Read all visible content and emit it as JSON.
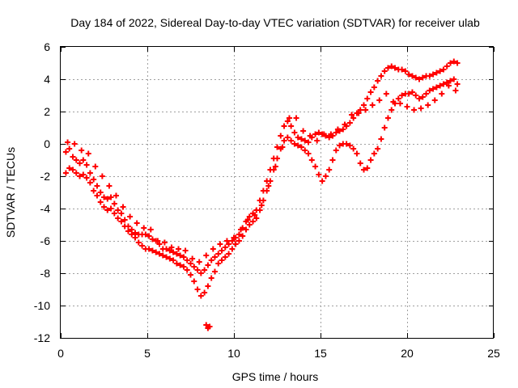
{
  "chart_data": {
    "type": "scatter",
    "title": "Day 184 of 2022, Sidereal Day-to-day VTEC variation (SDTVAR) for receiver ulab",
    "xlabel": "GPS time / hours",
    "ylabel": "SDTVAR / TECUs",
    "xlim": [
      0,
      25
    ],
    "ylim": [
      -12,
      6
    ],
    "xticks": [
      0,
      5,
      10,
      15,
      20,
      25
    ],
    "yticks": [
      -12,
      -10,
      -8,
      -6,
      -4,
      -2,
      0,
      2,
      4,
      6
    ],
    "grid": true,
    "legend": "none",
    "marker": "plus",
    "color": "#ff0000",
    "series": [
      {
        "name": "",
        "x": [
          0.3,
          0.5,
          0.7,
          0.9,
          1.1,
          1.3,
          1.5,
          1.7,
          1.9,
          2.1,
          2.3,
          2.5,
          2.7,
          2.9,
          3.1,
          3.3,
          3.5,
          3.7,
          3.9,
          4.1,
          4.3,
          4.5,
          4.7,
          4.9,
          5.1,
          5.3,
          5.5,
          5.7,
          5.9,
          6.1,
          6.3,
          6.5,
          6.7,
          6.9,
          7.1,
          7.3,
          7.5,
          7.7,
          7.9,
          8.1,
          8.3,
          8.5,
          8.7,
          8.9,
          9.1,
          9.3,
          9.5,
          9.7,
          9.9,
          10.1,
          10.3,
          10.5,
          10.7,
          10.9,
          11.1,
          11.3,
          11.5,
          11.7,
          11.9,
          12.1,
          12.3,
          12.5,
          12.7,
          12.9,
          13.1,
          13.3,
          13.5,
          13.7,
          13.9,
          14.1,
          14.3,
          14.5,
          14.7,
          14.9,
          15.1,
          15.3,
          15.5,
          15.7,
          15.9,
          16.1,
          16.3,
          16.5,
          16.7,
          16.9,
          17.1,
          17.3,
          17.5,
          17.7,
          17.9,
          18.1,
          18.3,
          18.5,
          18.7,
          18.9,
          19.1,
          19.3,
          19.5,
          19.7,
          19.9,
          20.1,
          20.3,
          20.5,
          20.7,
          20.9,
          21.1,
          21.3,
          21.5,
          21.7,
          21.9,
          22.1,
          22.3,
          22.5,
          22.7,
          22.9
        ],
        "y": [
          -0.5,
          -0.3,
          -0.8,
          -1.0,
          -1.2,
          -1.0,
          -1.3,
          -1.8,
          -2.2,
          -2.6,
          -3.0,
          -3.3,
          -3.4,
          -3.3,
          -3.7,
          -4.1,
          -4.3,
          -4.7,
          -5.1,
          -5.3,
          -5.5,
          -5.6,
          -5.6,
          -5.6,
          -5.7,
          -5.9,
          -6.0,
          -6.2,
          -6.5,
          -6.5,
          -6.6,
          -6.7,
          -6.8,
          -6.9,
          -7.0,
          -7.2,
          -7.4,
          -7.6,
          -7.8,
          -8.0,
          -7.8,
          -7.5,
          -7.2,
          -7.0,
          -6.8,
          -6.6,
          -6.4,
          -6.2,
          -6.0,
          -5.8,
          -5.6,
          -5.2,
          -4.8,
          -4.5,
          -4.3,
          -4.1,
          -3.5,
          -2.9,
          -2.3,
          -1.6,
          -0.9,
          -0.2,
          0.5,
          1.1,
          1.4,
          1.1,
          0.7,
          0.4,
          0.3,
          0.2,
          0.1,
          0.4,
          0.6,
          0.7,
          0.6,
          0.5,
          0.4,
          0.5,
          0.7,
          0.8,
          0.9,
          1.1,
          1.3,
          1.6,
          1.9,
          2.1,
          2.4,
          2.8,
          3.2,
          3.5,
          3.9,
          4.2,
          4.5,
          4.7,
          4.8,
          4.7,
          4.6,
          4.6,
          4.5,
          4.3,
          4.2,
          4.1,
          4.0,
          4.1,
          4.2,
          4.2,
          4.3,
          4.4,
          4.5,
          4.6,
          4.8,
          5.0,
          5.1,
          5.0
        ]
      },
      {
        "name": "",
        "x": [
          0.3,
          0.5,
          0.7,
          0.9,
          1.1,
          1.3,
          1.5,
          1.7,
          1.9,
          2.1,
          2.3,
          2.5,
          2.7,
          2.9,
          3.1,
          3.3,
          3.5,
          3.7,
          3.9,
          4.1,
          4.3,
          4.5,
          4.7,
          4.9,
          5.1,
          5.3,
          5.5,
          5.7,
          5.9,
          6.1,
          6.3,
          6.5,
          6.7,
          6.9,
          7.1,
          7.3,
          7.5,
          7.7,
          7.9,
          8.1,
          8.3,
          8.5,
          8.7,
          8.9,
          9.1,
          9.3,
          9.5,
          9.7,
          9.9,
          10.1,
          10.3,
          10.5,
          10.7,
          10.9,
          11.1,
          11.3,
          11.5,
          11.7,
          11.9,
          12.1,
          12.3,
          12.5,
          12.7,
          12.9,
          13.1,
          13.3,
          13.5,
          13.7,
          13.9,
          14.1,
          14.3,
          14.5,
          14.7,
          14.9,
          15.1,
          15.3,
          15.5,
          15.7,
          15.9,
          16.1,
          16.3,
          16.5,
          16.7,
          16.9,
          17.1,
          17.3,
          17.5,
          17.7,
          17.9,
          18.1,
          18.3,
          18.5,
          18.7,
          18.9,
          19.1,
          19.3,
          19.5,
          19.7,
          19.9,
          20.1,
          20.3,
          20.5,
          20.7,
          20.9,
          21.1,
          21.3,
          21.5,
          21.7,
          21.9,
          22.1,
          22.3,
          22.5,
          22.7,
          22.9
        ],
        "y": [
          -1.8,
          -1.5,
          -1.6,
          -1.8,
          -2.0,
          -1.9,
          -2.1,
          -2.4,
          -2.9,
          -3.2,
          -3.6,
          -3.9,
          -4.1,
          -4.0,
          -4.3,
          -4.6,
          -4.8,
          -5.1,
          -5.4,
          -5.6,
          -5.8,
          -6.1,
          -6.3,
          -6.5,
          -6.5,
          -6.6,
          -6.7,
          -6.8,
          -6.9,
          -7.0,
          -7.1,
          -7.2,
          -7.4,
          -7.5,
          -7.6,
          -7.8,
          -8.1,
          -8.5,
          -9.0,
          -9.4,
          -9.2,
          -8.8,
          -8.3,
          -7.9,
          -7.4,
          -7.2,
          -7.0,
          -6.8,
          -6.5,
          -6.2,
          -6.0,
          -5.7,
          -5.3,
          -5.0,
          -4.8,
          -4.6,
          -4.1,
          -3.5,
          -2.9,
          -2.3,
          -1.6,
          -0.9,
          -0.3,
          0.2,
          0.4,
          0.2,
          0.0,
          -0.1,
          -0.2,
          -0.4,
          -0.6,
          -1.0,
          -1.4,
          -1.9,
          -2.3,
          -2.0,
          -1.6,
          -1.0,
          -0.4,
          -0.1,
          0.0,
          0.0,
          -0.1,
          -0.3,
          -0.6,
          -1.2,
          -1.6,
          -1.5,
          -1.0,
          -0.6,
          -0.3,
          0.3,
          1.0,
          1.6,
          2.1,
          2.5,
          2.8,
          3.0,
          3.1,
          3.1,
          3.2,
          3.0,
          2.8,
          2.9,
          3.1,
          3.3,
          3.4,
          3.5,
          3.6,
          3.7,
          3.8,
          3.9,
          4.0,
          3.7
        ]
      },
      {
        "name": "",
        "x": [
          0.4,
          0.8,
          1.2,
          1.6,
          2.0,
          2.4,
          2.8,
          3.2,
          3.6,
          4.0,
          4.4,
          4.8,
          5.2,
          5.6,
          6.0,
          6.4,
          6.8,
          7.2,
          7.6,
          8.0,
          8.4,
          8.8,
          9.2,
          9.6,
          10.0,
          10.4,
          10.8,
          11.2,
          11.6,
          12.0,
          12.4,
          12.8,
          13.2,
          13.6,
          14.0,
          14.4,
          14.8,
          15.2,
          15.6,
          16.0,
          16.4,
          16.8,
          17.2,
          17.6,
          18.0,
          18.4,
          18.8,
          19.2,
          19.6,
          20.0,
          20.4,
          20.8,
          21.2,
          21.6,
          22.0,
          22.4,
          22.8
        ],
        "y": [
          0.1,
          0.0,
          -0.4,
          -0.6,
          -1.4,
          -2.0,
          -2.6,
          -3.2,
          -3.9,
          -4.5,
          -4.9,
          -5.2,
          -5.3,
          -6.0,
          -6.1,
          -6.4,
          -6.5,
          -6.6,
          -7.1,
          -7.3,
          -6.9,
          -6.5,
          -6.2,
          -6.0,
          -5.8,
          -5.3,
          -4.7,
          -4.4,
          -3.8,
          -2.6,
          -1.4,
          -0.2,
          1.6,
          1.6,
          0.8,
          0.5,
          0.2,
          0.6,
          0.6,
          0.9,
          1.2,
          1.8,
          1.9,
          2.1,
          2.4,
          2.7,
          3.1,
          2.6,
          2.5,
          2.3,
          2.1,
          2.2,
          2.4,
          2.7,
          3.1,
          3.6,
          3.3
        ]
      },
      {
        "name": "",
        "x": [
          8.4,
          8.5,
          8.6
        ],
        "y": [
          -11.2,
          -11.4,
          -11.3
        ]
      }
    ]
  }
}
